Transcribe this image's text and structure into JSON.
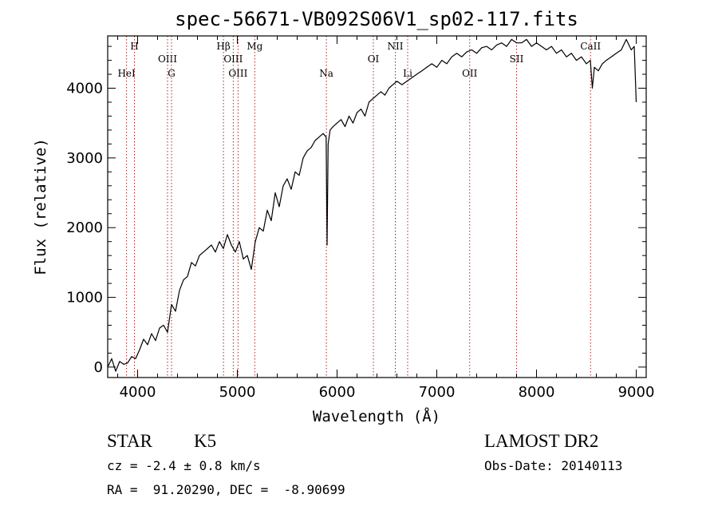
{
  "chart_data": {
    "type": "line",
    "title": "spec-56671-VB092S06V1_sp02-117.fits",
    "xlabel": "Wavelength (Å)",
    "ylabel": "Flux (relative)",
    "xlim": [
      3700,
      9100
    ],
    "ylim": [
      -150,
      4750
    ],
    "x_ticks": [
      4000,
      5000,
      6000,
      7000,
      8000,
      9000
    ],
    "x_tick_labels": [
      "4000",
      "5000",
      "6000",
      "7000",
      "8000",
      "9000"
    ],
    "y_ticks": [
      0,
      1000,
      2000,
      3000,
      4000
    ],
    "y_tick_labels": [
      "0",
      "1000",
      "2000",
      "3000",
      "4000"
    ],
    "grid": false,
    "line_color": "#000000",
    "marker_color": "#b22222",
    "series": [
      {
        "x": [
          3700,
          3740,
          3780,
          3820,
          3860,
          3900,
          3940,
          3980,
          4020,
          4060,
          4100,
          4140,
          4180,
          4220,
          4260,
          4300,
          4340,
          4380,
          4420,
          4460,
          4500,
          4540,
          4580,
          4620,
          4660,
          4700,
          4740,
          4780,
          4820,
          4860,
          4900,
          4940,
          4980,
          5020,
          5060,
          5100,
          5140,
          5180,
          5220,
          5260,
          5300,
          5340,
          5380,
          5420,
          5460,
          5500,
          5540,
          5580,
          5620,
          5660,
          5700,
          5740,
          5780,
          5820,
          5860,
          5890,
          5900,
          5910,
          5930,
          5960,
          6000,
          6040,
          6080,
          6120,
          6160,
          6200,
          6240,
          6280,
          6320,
          6360,
          6400,
          6440,
          6480,
          6520,
          6560,
          6600,
          6650,
          6700,
          6750,
          6800,
          6850,
          6900,
          6950,
          7000,
          7050,
          7100,
          7150,
          7200,
          7250,
          7300,
          7350,
          7400,
          7450,
          7500,
          7550,
          7600,
          7650,
          7700,
          7750,
          7800,
          7850,
          7900,
          7950,
          8000,
          8050,
          8100,
          8150,
          8200,
          8250,
          8300,
          8350,
          8400,
          8450,
          8500,
          8540,
          8560,
          8580,
          8620,
          8660,
          8700,
          8750,
          8800,
          8850,
          8900,
          8950,
          8980,
          9000
        ],
        "y": [
          0,
          120,
          -60,
          80,
          40,
          60,
          150,
          120,
          250,
          400,
          320,
          480,
          380,
          560,
          600,
          500,
          900,
          800,
          1100,
          1250,
          1300,
          1500,
          1450,
          1600,
          1650,
          1700,
          1750,
          1650,
          1800,
          1700,
          1900,
          1750,
          1650,
          1800,
          1550,
          1600,
          1400,
          1800,
          2000,
          1950,
          2250,
          2100,
          2500,
          2300,
          2600,
          2700,
          2550,
          2800,
          2750,
          3000,
          3100,
          3150,
          3250,
          3300,
          3350,
          3300,
          1750,
          3200,
          3400,
          3450,
          3500,
          3550,
          3450,
          3600,
          3500,
          3650,
          3700,
          3600,
          3800,
          3850,
          3900,
          3950,
          3900,
          4000,
          4050,
          4100,
          4050,
          4100,
          4150,
          4200,
          4250,
          4300,
          4350,
          4300,
          4400,
          4350,
          4450,
          4500,
          4450,
          4520,
          4550,
          4500,
          4580,
          4600,
          4550,
          4620,
          4650,
          4600,
          4700,
          4650,
          4650,
          4700,
          4600,
          4650,
          4600,
          4550,
          4600,
          4500,
          4550,
          4450,
          4500,
          4400,
          4450,
          4350,
          4400,
          4000,
          4300,
          4250,
          4350,
          4400,
          4450,
          4500,
          4550,
          4700,
          4550,
          4600,
          3800
        ]
      }
    ],
    "line_markers": [
      {
        "name": "HeI",
        "x": 3889,
        "row": "lower"
      },
      {
        "name": "H",
        "x": 3968,
        "row": "upper"
      },
      {
        "name": "OIII",
        "x": 4300,
        "row": "middle"
      },
      {
        "name": "G",
        "x": 4340,
        "row": "lower"
      },
      {
        "name": "Hβ",
        "x": 4861,
        "row": "upper"
      },
      {
        "name": "OIII",
        "x": 4959,
        "row": "middle"
      },
      {
        "name": "OIII",
        "x": 5007,
        "row": "lower"
      },
      {
        "name": "Mg",
        "x": 5175,
        "row": "upper"
      },
      {
        "name": "Na",
        "x": 5893,
        "row": "lower"
      },
      {
        "name": "OI",
        "x": 6364,
        "row": "middle"
      },
      {
        "name": "NII",
        "x": 6584,
        "row": "upper"
      },
      {
        "name": "Li",
        "x": 6708,
        "row": "lower"
      },
      {
        "name": "OII",
        "x": 7330,
        "row": "lower"
      },
      {
        "name": "SII",
        "x": 7800,
        "row": "middle"
      },
      {
        "name": "CaII",
        "x": 8542,
        "row": "upper"
      }
    ]
  },
  "info": {
    "object_class": "STAR",
    "subclass": "K5",
    "redshift": "cz = -2.4 ± 0.8 km/s",
    "coordinates": "RA =  91.20290, DEC =  -8.90699",
    "survey": "LAMOST DR2",
    "obs_date": "Obs-Date: 20140113"
  }
}
